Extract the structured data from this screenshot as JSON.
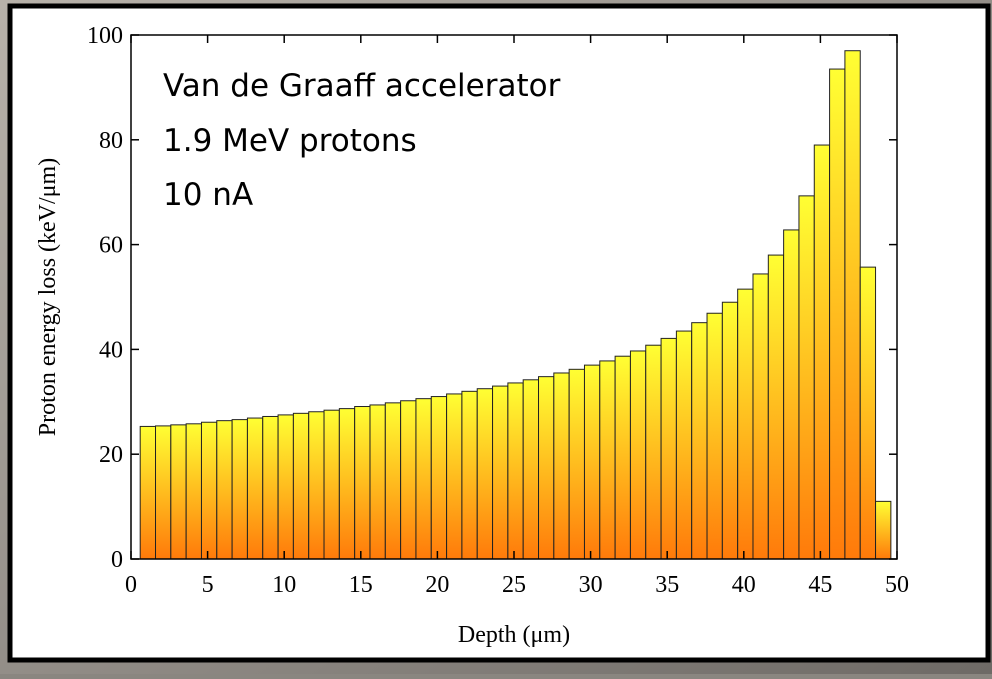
{
  "chart_data": {
    "type": "histogram",
    "xlabel": "Depth (μm)",
    "ylabel": "Proton energy loss (keV/μm)",
    "annotations": [
      "Van de Graaff accelerator",
      "1.9 MeV protons",
      "10 nA"
    ],
    "bins": [
      0.6,
      1.6,
      2.6,
      3.6,
      4.6,
      5.6,
      6.6,
      7.6,
      8.6,
      9.6,
      10.6,
      11.6,
      12.6,
      13.6,
      14.6,
      15.6,
      16.6,
      17.6,
      18.6,
      19.6,
      20.6,
      21.6,
      22.6,
      23.6,
      24.6,
      25.6,
      26.6,
      27.6,
      28.6,
      29.6,
      30.6,
      31.6,
      32.6,
      33.6,
      34.6,
      35.6,
      36.6,
      37.6,
      38.6,
      39.6,
      40.6,
      41.6,
      42.6,
      43.6,
      44.6,
      45.6,
      46.6,
      47.6,
      48.6,
      49.6
    ],
    "values": [
      25.3,
      25.4,
      25.6,
      25.8,
      26.1,
      26.4,
      26.6,
      26.9,
      27.2,
      27.5,
      27.8,
      28.1,
      28.4,
      28.7,
      29.1,
      29.4,
      29.8,
      30.2,
      30.6,
      31.0,
      31.5,
      32.0,
      32.5,
      33.0,
      33.6,
      34.2,
      34.8,
      35.5,
      36.2,
      37.0,
      37.8,
      38.7,
      39.7,
      40.8,
      42.1,
      43.5,
      45.1,
      46.9,
      49.0,
      51.5,
      54.4,
      58.0,
      62.8,
      69.3,
      79.0,
      93.5,
      97.0,
      55.7,
      11.0,
      0.5
    ],
    "colors": [
      "#ffff33",
      "#ff7a0a"
    ],
    "xlim": [
      0,
      50
    ],
    "xticks": [
      0,
      5,
      10,
      15,
      20,
      25,
      30,
      35,
      40,
      45,
      50
    ],
    "ylim": [
      0,
      100
    ],
    "yticks": [
      0,
      20,
      40,
      60,
      80,
      100
    ]
  }
}
